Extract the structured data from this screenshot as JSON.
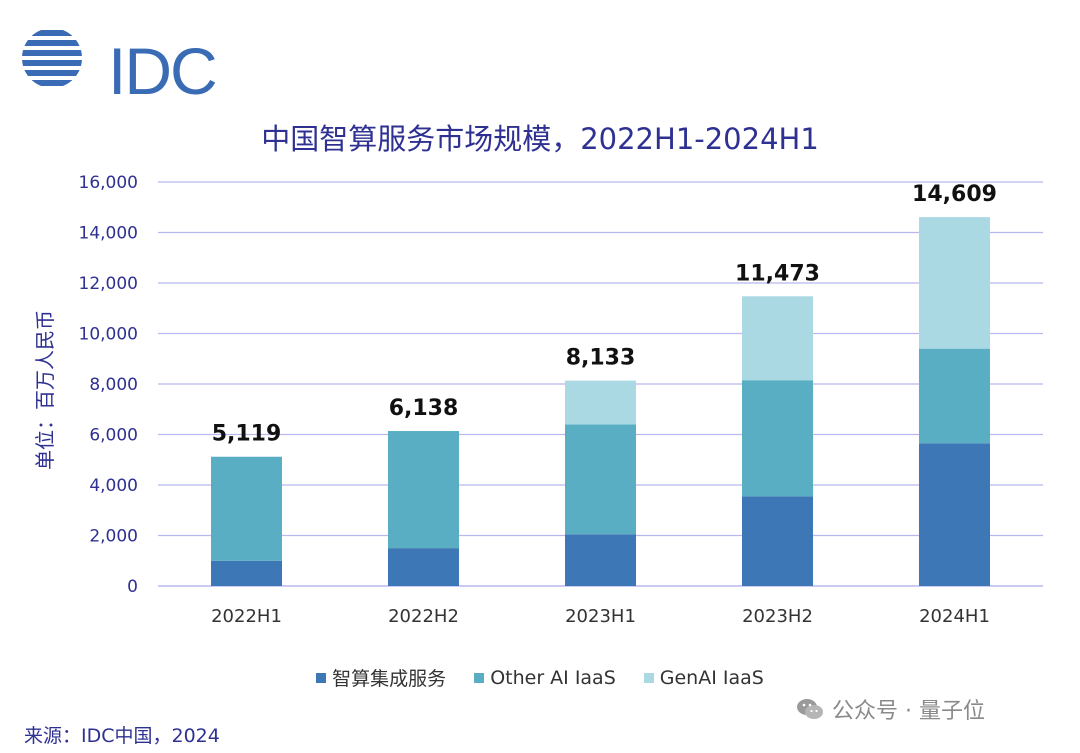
{
  "logo": {
    "text": "IDC"
  },
  "watermark": {
    "text": "公众号 · 量子位",
    "icon": "wechat-icon"
  },
  "legend": [
    {
      "label": "智算集成服务",
      "color": "#3d77b6"
    },
    {
      "label": "Other AI IaaS",
      "color": "#5aaec4"
    },
    {
      "label": "GenAI IaaS",
      "color": "#aad9e4"
    }
  ],
  "source": "来源：IDC中国，2024",
  "chart_data": {
    "type": "bar",
    "stacked": true,
    "title": "中国智算服务市场规模，2022H1-2024H1",
    "xlabel": "",
    "ylabel": "单位：百万人民币",
    "categories": [
      "2022H1",
      "2022H2",
      "2023H1",
      "2023H2",
      "2024H1"
    ],
    "series": [
      {
        "name": "智算集成服务",
        "color": "#3d77b6",
        "values": [
          1000,
          1500,
          2050,
          3550,
          5650
        ]
      },
      {
        "name": "Other AI IaaS",
        "color": "#5aaec4",
        "values": [
          4119,
          4638,
          4350,
          4600,
          3750
        ]
      },
      {
        "name": "GenAI IaaS",
        "color": "#aad9e4",
        "values": [
          0,
          0,
          1733,
          3323,
          5209
        ]
      }
    ],
    "totals": [
      "5,119",
      "6,138",
      "8,133",
      "11,473",
      "14,609"
    ],
    "total_values": [
      5119,
      6138,
      8133,
      11473,
      14609
    ],
    "ylim": [
      0,
      16000
    ],
    "yticks": [
      0,
      2000,
      4000,
      6000,
      8000,
      10000,
      12000,
      14000,
      16000
    ],
    "ytick_labels": [
      "0",
      "2,000",
      "4,000",
      "6,000",
      "8,000",
      "10,000",
      "12,000",
      "14,000",
      "16,000"
    ],
    "grid": true,
    "legend_position": "bottom"
  }
}
